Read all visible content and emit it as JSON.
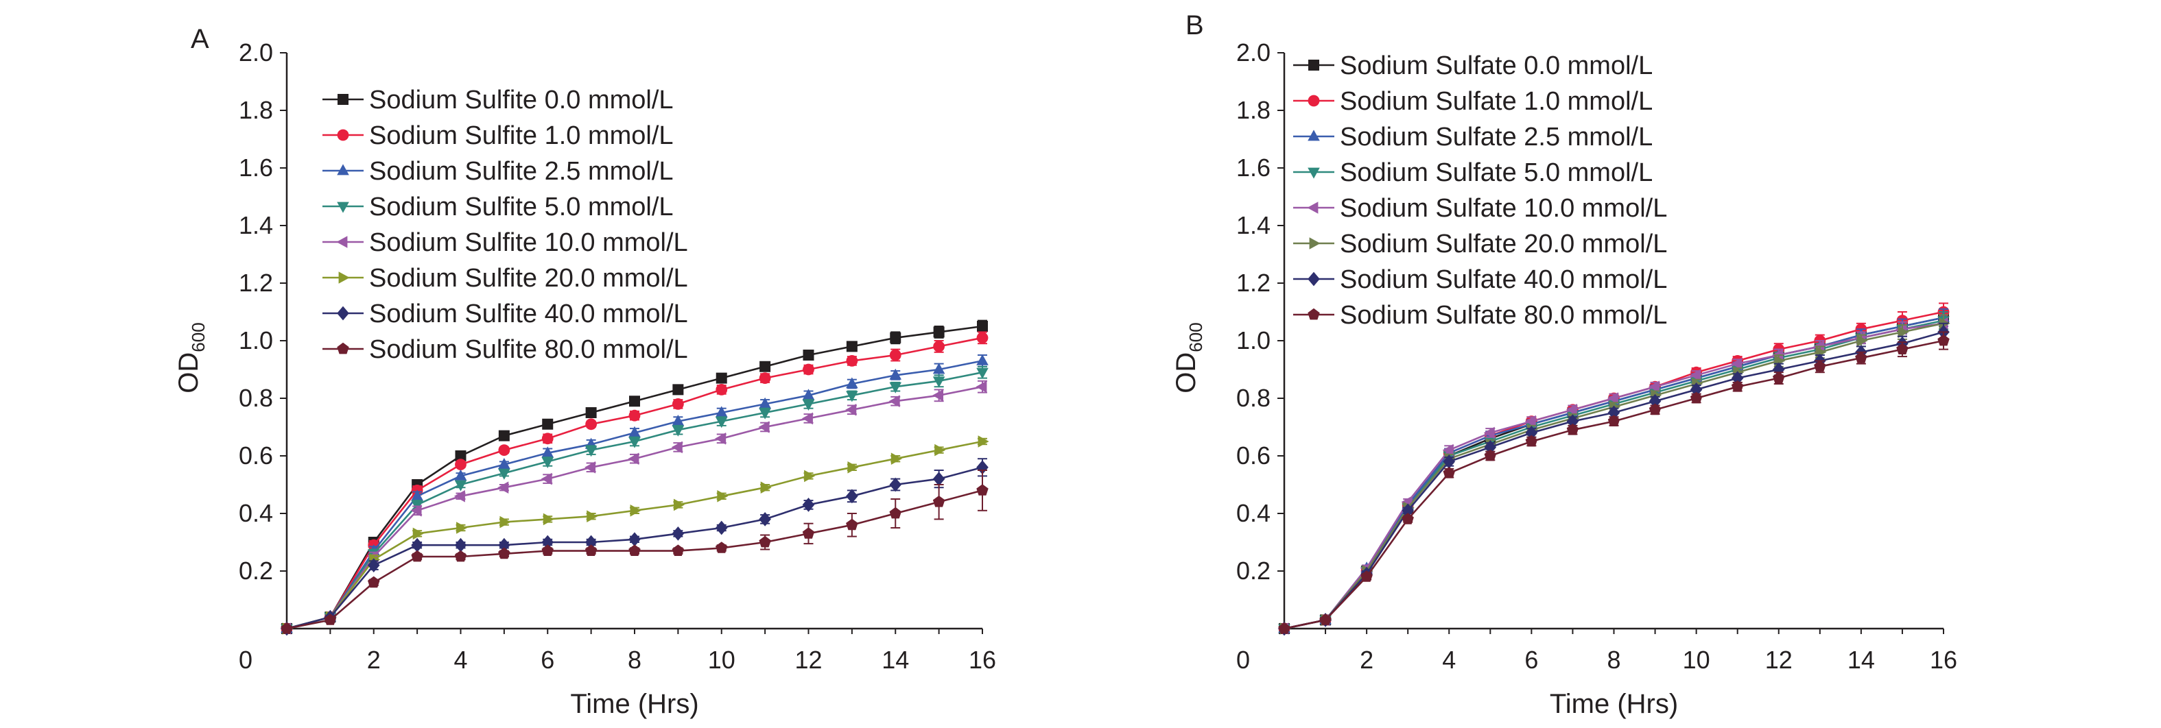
{
  "chart_data": [
    {
      "type": "line",
      "panel_label": "A",
      "xlabel": "Time (Hrs)",
      "ylabel": "OD",
      "ylabel_sub": "600",
      "xlim": [
        0,
        16
      ],
      "ylim": [
        0,
        2.0
      ],
      "x_ticks": [
        0,
        2,
        4,
        6,
        8,
        10,
        12,
        14,
        16
      ],
      "y_ticks": [
        0.2,
        0.4,
        0.6,
        0.8,
        1.0,
        1.2,
        1.4,
        1.6,
        1.8,
        2.0
      ],
      "x_tick_labels": [
        "0",
        "2",
        "4",
        "6",
        "8",
        "10",
        "12",
        "14",
        "16"
      ],
      "y_tick_labels": [
        "0.2",
        "0.4",
        "0.6",
        "0.8",
        "1.0",
        "1.2",
        "1.4",
        "1.6",
        "1.8",
        "2.0"
      ],
      "grid": false,
      "legend_position": "top-left",
      "x": [
        0,
        1,
        2,
        3,
        4,
        5,
        6,
        7,
        8,
        9,
        10,
        11,
        12,
        13,
        14,
        15,
        16
      ],
      "series": [
        {
          "name": "Sodium Sulfite 0.0 mmol/L",
          "color": "#231f20",
          "marker": "square",
          "values": [
            0.0,
            0.04,
            0.3,
            0.5,
            0.6,
            0.67,
            0.71,
            0.75,
            0.79,
            0.83,
            0.87,
            0.91,
            0.95,
            0.98,
            1.01,
            1.03,
            1.05
          ],
          "errors": [
            0,
            0.005,
            0.015,
            0.015,
            0.01,
            0.01,
            0.015,
            0.01,
            0.01,
            0.01,
            0.015,
            0.015,
            0.015,
            0.015,
            0.02,
            0.02,
            0.02
          ]
        },
        {
          "name": "Sodium Sulfite 1.0 mmol/L",
          "color": "#e8203f",
          "marker": "circle",
          "values": [
            0.0,
            0.04,
            0.29,
            0.48,
            0.57,
            0.62,
            0.66,
            0.71,
            0.74,
            0.78,
            0.83,
            0.87,
            0.9,
            0.93,
            0.95,
            0.98,
            1.01
          ],
          "errors": [
            0,
            0.005,
            0.015,
            0.015,
            0.01,
            0.01,
            0.015,
            0.01,
            0.015,
            0.015,
            0.015,
            0.015,
            0.015,
            0.015,
            0.02,
            0.02,
            0.02
          ]
        },
        {
          "name": "Sodium Sulfite 2.5 mmol/L",
          "color": "#3a5dae",
          "marker": "triangle-up",
          "values": [
            0.0,
            0.04,
            0.27,
            0.46,
            0.53,
            0.57,
            0.61,
            0.64,
            0.68,
            0.72,
            0.75,
            0.78,
            0.81,
            0.85,
            0.88,
            0.9,
            0.93
          ],
          "errors": [
            0,
            0.005,
            0.015,
            0.015,
            0.01,
            0.01,
            0.015,
            0.015,
            0.015,
            0.015,
            0.015,
            0.015,
            0.015,
            0.015,
            0.015,
            0.02,
            0.02
          ]
        },
        {
          "name": "Sodium Sulfite 5.0 mmol/L",
          "color": "#2f8a7e",
          "marker": "triangle-down",
          "values": [
            0.0,
            0.04,
            0.26,
            0.43,
            0.5,
            0.54,
            0.58,
            0.62,
            0.65,
            0.69,
            0.72,
            0.75,
            0.78,
            0.81,
            0.84,
            0.86,
            0.89
          ],
          "errors": [
            0,
            0.005,
            0.015,
            0.015,
            0.01,
            0.01,
            0.015,
            0.015,
            0.015,
            0.015,
            0.015,
            0.015,
            0.015,
            0.015,
            0.015,
            0.02,
            0.02
          ]
        },
        {
          "name": "Sodium Sulfite 10.0 mmol/L",
          "color": "#9b59a6",
          "marker": "triangle-left",
          "values": [
            0.0,
            0.04,
            0.25,
            0.41,
            0.46,
            0.49,
            0.52,
            0.56,
            0.59,
            0.63,
            0.66,
            0.7,
            0.73,
            0.76,
            0.79,
            0.81,
            0.84
          ],
          "errors": [
            0,
            0.005,
            0.015,
            0.015,
            0.01,
            0.01,
            0.015,
            0.015,
            0.015,
            0.015,
            0.015,
            0.015,
            0.015,
            0.015,
            0.015,
            0.02,
            0.02
          ]
        },
        {
          "name": "Sodium Sulfite 20.0 mmol/L",
          "color": "#8a9a2c",
          "marker": "triangle-right",
          "values": [
            0.0,
            0.04,
            0.24,
            0.33,
            0.35,
            0.37,
            0.38,
            0.39,
            0.41,
            0.43,
            0.46,
            0.49,
            0.53,
            0.56,
            0.59,
            0.62,
            0.65
          ],
          "errors": [
            0,
            0.005,
            0.015,
            0.01,
            0.01,
            0.01,
            0.01,
            0.01,
            0.01,
            0.01,
            0.01,
            0.01,
            0.01,
            0.01,
            0.01,
            0.01,
            0.01
          ]
        },
        {
          "name": "Sodium Sulfite 40.0 mmol/L",
          "color": "#2e2f6e",
          "marker": "diamond",
          "values": [
            0.0,
            0.04,
            0.22,
            0.29,
            0.29,
            0.29,
            0.3,
            0.3,
            0.31,
            0.33,
            0.35,
            0.38,
            0.43,
            0.46,
            0.5,
            0.52,
            0.56
          ],
          "errors": [
            0,
            0.005,
            0.015,
            0.01,
            0.01,
            0.01,
            0.01,
            0.01,
            0.01,
            0.01,
            0.01,
            0.015,
            0.015,
            0.02,
            0.02,
            0.03,
            0.03
          ]
        },
        {
          "name": "Sodium Sulfite 80.0 mmol/L",
          "color": "#6e1f2f",
          "marker": "pentagon",
          "values": [
            0.0,
            0.03,
            0.16,
            0.25,
            0.25,
            0.26,
            0.27,
            0.27,
            0.27,
            0.27,
            0.28,
            0.3,
            0.33,
            0.36,
            0.4,
            0.44,
            0.48
          ],
          "errors": [
            0,
            0.005,
            0.01,
            0.01,
            0.01,
            0.01,
            0.01,
            0.01,
            0.01,
            0.01,
            0.01,
            0.025,
            0.035,
            0.04,
            0.05,
            0.06,
            0.07
          ]
        }
      ]
    },
    {
      "type": "line",
      "panel_label": "B",
      "xlabel": "Time (Hrs)",
      "ylabel": "OD",
      "ylabel_sub": "600",
      "xlim": [
        0,
        16
      ],
      "ylim": [
        0,
        2.0
      ],
      "x_ticks": [
        0,
        2,
        4,
        6,
        8,
        10,
        12,
        14,
        16
      ],
      "y_ticks": [
        0.2,
        0.4,
        0.6,
        0.8,
        1.0,
        1.2,
        1.4,
        1.6,
        1.8,
        2.0
      ],
      "x_tick_labels": [
        "0",
        "2",
        "4",
        "6",
        "8",
        "10",
        "12",
        "14",
        "16"
      ],
      "y_tick_labels": [
        "0.2",
        "0.4",
        "0.6",
        "0.8",
        "1.0",
        "1.2",
        "1.4",
        "1.6",
        "1.8",
        "2.0"
      ],
      "grid": false,
      "legend_position": "top-left",
      "x": [
        0,
        1,
        2,
        3,
        4,
        5,
        6,
        7,
        8,
        9,
        10,
        11,
        12,
        13,
        14,
        15,
        16
      ],
      "series": [
        {
          "name": "Sodium Sulfate 0.0 mmol/L",
          "color": "#231f20",
          "marker": "square",
          "values": [
            0.0,
            0.03,
            0.2,
            0.42,
            0.6,
            0.66,
            0.71,
            0.75,
            0.79,
            0.83,
            0.87,
            0.91,
            0.95,
            0.98,
            1.02,
            1.05,
            1.08
          ],
          "errors": [
            0,
            0.005,
            0.01,
            0.01,
            0.015,
            0.015,
            0.015,
            0.015,
            0.015,
            0.015,
            0.015,
            0.015,
            0.02,
            0.02,
            0.02,
            0.025,
            0.03
          ]
        },
        {
          "name": "Sodium Sulfate 1.0 mmol/L",
          "color": "#e8203f",
          "marker": "circle",
          "values": [
            0.0,
            0.03,
            0.2,
            0.43,
            0.61,
            0.67,
            0.72,
            0.76,
            0.8,
            0.84,
            0.89,
            0.93,
            0.97,
            1.0,
            1.04,
            1.07,
            1.1
          ],
          "errors": [
            0,
            0.005,
            0.01,
            0.01,
            0.015,
            0.015,
            0.015,
            0.015,
            0.015,
            0.015,
            0.015,
            0.015,
            0.02,
            0.02,
            0.02,
            0.03,
            0.03
          ]
        },
        {
          "name": "Sodium Sulfate 2.5 mmol/L",
          "color": "#3a5dae",
          "marker": "triangle-up",
          "values": [
            0.0,
            0.03,
            0.21,
            0.43,
            0.61,
            0.67,
            0.71,
            0.75,
            0.79,
            0.83,
            0.87,
            0.91,
            0.95,
            0.98,
            1.02,
            1.05,
            1.08
          ],
          "errors": [
            0,
            0.005,
            0.01,
            0.01,
            0.015,
            0.015,
            0.015,
            0.015,
            0.015,
            0.015,
            0.015,
            0.015,
            0.02,
            0.02,
            0.02,
            0.025,
            0.03
          ]
        },
        {
          "name": "Sodium Sulfate 5.0 mmol/L",
          "color": "#2f8a7e",
          "marker": "triangle-down",
          "values": [
            0.0,
            0.03,
            0.2,
            0.42,
            0.6,
            0.65,
            0.7,
            0.74,
            0.78,
            0.82,
            0.86,
            0.9,
            0.94,
            0.97,
            1.01,
            1.04,
            1.07
          ],
          "errors": [
            0,
            0.005,
            0.01,
            0.01,
            0.015,
            0.015,
            0.015,
            0.015,
            0.015,
            0.015,
            0.015,
            0.015,
            0.02,
            0.02,
            0.02,
            0.025,
            0.03
          ]
        },
        {
          "name": "Sodium Sulfate 10.0 mmol/L",
          "color": "#9b59a6",
          "marker": "triangle-left",
          "values": [
            0.0,
            0.03,
            0.21,
            0.44,
            0.62,
            0.68,
            0.72,
            0.76,
            0.8,
            0.84,
            0.88,
            0.92,
            0.95,
            0.98,
            1.01,
            1.04,
            1.06
          ],
          "errors": [
            0,
            0.005,
            0.01,
            0.01,
            0.015,
            0.015,
            0.015,
            0.015,
            0.015,
            0.015,
            0.015,
            0.015,
            0.02,
            0.02,
            0.02,
            0.025,
            0.03
          ]
        },
        {
          "name": "Sodium Sulfate 20.0 mmol/L",
          "color": "#6f7f4e",
          "marker": "triangle-right",
          "values": [
            0.0,
            0.03,
            0.2,
            0.42,
            0.59,
            0.64,
            0.69,
            0.73,
            0.77,
            0.81,
            0.85,
            0.89,
            0.93,
            0.96,
            1.0,
            1.03,
            1.06
          ],
          "errors": [
            0,
            0.005,
            0.01,
            0.01,
            0.015,
            0.015,
            0.015,
            0.015,
            0.015,
            0.015,
            0.015,
            0.015,
            0.02,
            0.02,
            0.02,
            0.025,
            0.03
          ]
        },
        {
          "name": "Sodium Sulfate 40.0 mmol/L",
          "color": "#2e2f6e",
          "marker": "diamond",
          "values": [
            0.0,
            0.03,
            0.19,
            0.41,
            0.58,
            0.63,
            0.68,
            0.72,
            0.75,
            0.79,
            0.83,
            0.87,
            0.9,
            0.93,
            0.96,
            0.99,
            1.03
          ],
          "errors": [
            0,
            0.005,
            0.01,
            0.01,
            0.015,
            0.015,
            0.015,
            0.015,
            0.015,
            0.015,
            0.015,
            0.015,
            0.02,
            0.02,
            0.02,
            0.025,
            0.03
          ]
        },
        {
          "name": "Sodium Sulfate 80.0 mmol/L",
          "color": "#6e1f2f",
          "marker": "pentagon",
          "values": [
            0.0,
            0.03,
            0.18,
            0.38,
            0.54,
            0.6,
            0.65,
            0.69,
            0.72,
            0.76,
            0.8,
            0.84,
            0.87,
            0.91,
            0.94,
            0.97,
            1.0
          ],
          "errors": [
            0,
            0.005,
            0.01,
            0.01,
            0.015,
            0.015,
            0.015,
            0.015,
            0.015,
            0.015,
            0.015,
            0.015,
            0.02,
            0.02,
            0.02,
            0.025,
            0.03
          ]
        }
      ]
    }
  ]
}
